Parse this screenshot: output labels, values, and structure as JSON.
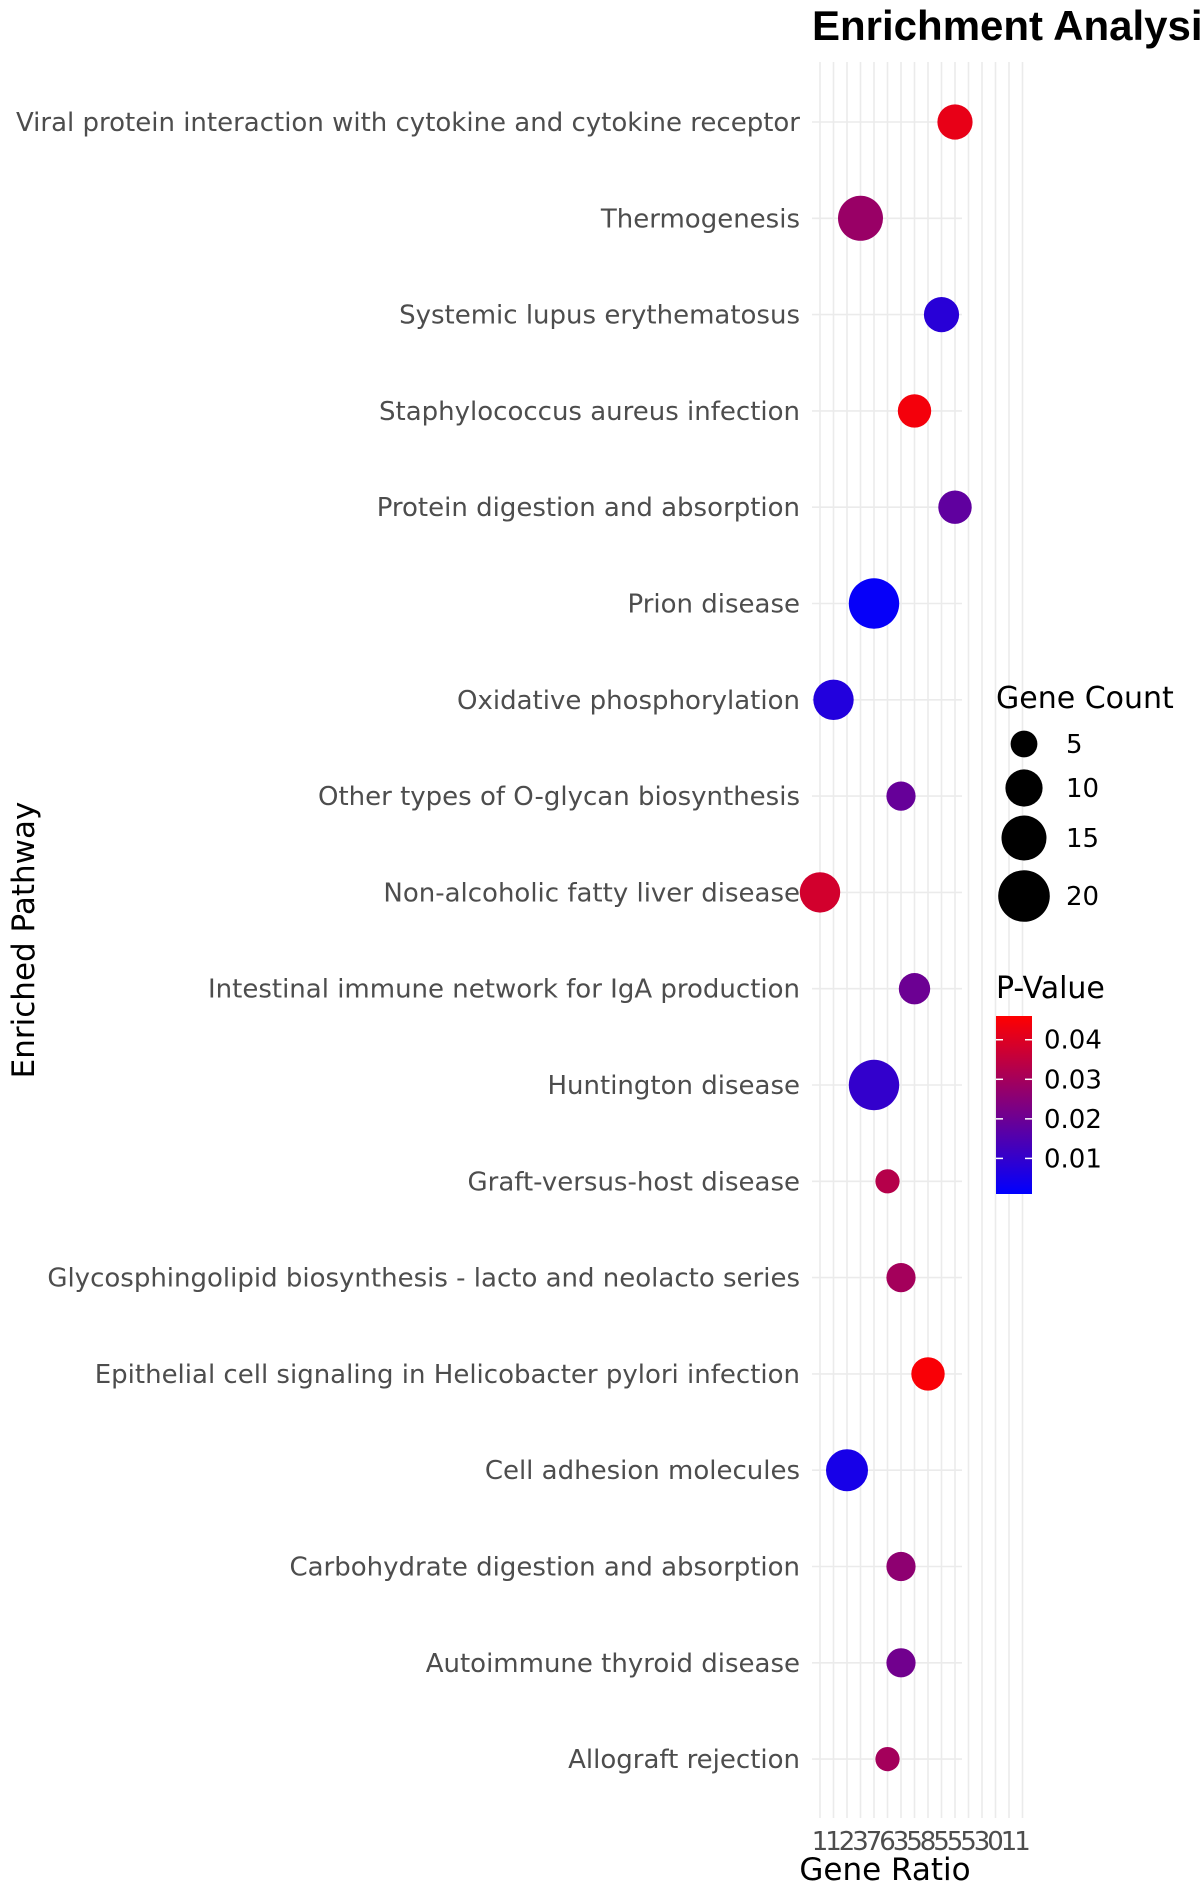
{
  "chart_data": {
    "type": "scatter",
    "title": "Enrichment Analysis",
    "xlabel": "Gene Ratio",
    "ylabel": "Enriched Pathway",
    "x_ticks": [
      "1",
      "1",
      "2",
      "3",
      "7",
      "6",
      "3",
      "5",
      "8",
      "5",
      "5",
      "5",
      "3",
      "0",
      "1",
      "1"
    ],
    "grid": true,
    "legend_position": "right",
    "categories": [
      "Viral protein interaction with cytokine and cytokine receptor",
      "Thermogenesis",
      "Systemic lupus erythematosus",
      "Staphylococcus aureus infection",
      "Protein digestion and absorption",
      "Prion disease",
      "Oxidative phosphorylation",
      "Other types of O-glycan biosynthesis",
      "Non-alcoholic fatty liver disease",
      "Intestinal immune network for IgA production",
      "Huntington disease",
      "Graft-versus-host disease",
      "Glycosphingolipid biosynthesis - lacto and neolacto series",
      "Epithelial cell signaling in Helicobacter pylori infection",
      "Cell adhesion molecules",
      "Carbohydrate digestion and absorption",
      "Autoimmune thyroid disease",
      "Allograft rejection"
    ],
    "points": [
      {
        "pathway": "Viral protein interaction with cytokine and cytokine receptor",
        "x_index": 10,
        "count": 9,
        "pvalue": 0.042
      },
      {
        "pathway": "Thermogenesis",
        "x_index": 3,
        "count": 15,
        "pvalue": 0.028
      },
      {
        "pathway": "Systemic lupus erythematosus",
        "x_index": 9,
        "count": 9,
        "pvalue": 0.008
      },
      {
        "pathway": "Staphylococcus aureus infection",
        "x_index": 7,
        "count": 8,
        "pvalue": 0.044
      },
      {
        "pathway": "Protein digestion and absorption",
        "x_index": 10,
        "count": 8,
        "pvalue": 0.018
      },
      {
        "pathway": "Prion disease",
        "x_index": 4,
        "count": 19,
        "pvalue": 0.002
      },
      {
        "pathway": "Oxidative phosphorylation",
        "x_index": 1,
        "count": 12,
        "pvalue": 0.007
      },
      {
        "pathway": "Other types of O-glycan biosynthesis",
        "x_index": 6,
        "count": 6,
        "pvalue": 0.019
      },
      {
        "pathway": "Non-alcoholic fatty liver disease",
        "x_index": 0,
        "count": 12,
        "pvalue": 0.038
      },
      {
        "pathway": "Intestinal immune network for IgA production",
        "x_index": 7,
        "count": 7,
        "pvalue": 0.02
      },
      {
        "pathway": "Huntington disease",
        "x_index": 4,
        "count": 19,
        "pvalue": 0.01
      },
      {
        "pathway": "Graft-versus-host disease",
        "x_index": 5,
        "count": 4,
        "pvalue": 0.033
      },
      {
        "pathway": "Glycosphingolipid biosynthesis - lacto and neolacto series",
        "x_index": 6,
        "count": 6,
        "pvalue": 0.03
      },
      {
        "pathway": "Epithelial cell signaling in Helicobacter pylori infection",
        "x_index": 8,
        "count": 8,
        "pvalue": 0.045
      },
      {
        "pathway": "Cell adhesion molecules",
        "x_index": 2,
        "count": 13,
        "pvalue": 0.005
      },
      {
        "pathway": "Carbohydrate digestion and absorption",
        "x_index": 6,
        "count": 6,
        "pvalue": 0.026
      },
      {
        "pathway": "Autoimmune thyroid disease",
        "x_index": 6,
        "count": 6,
        "pvalue": 0.021
      },
      {
        "pathway": "Allograft rejection",
        "x_index": 5,
        "count": 4,
        "pvalue": 0.03
      }
    ],
    "size_legend": {
      "title": "Gene Count",
      "values": [
        5,
        10,
        15,
        20
      ],
      "labels": [
        "5",
        "10",
        "15",
        "20"
      ]
    },
    "color_legend": {
      "title": "P-Value",
      "low_color": "#0000ff",
      "high_color": "#ff0000",
      "range": [
        0.001,
        0.046
      ],
      "ticks": [
        0.01,
        0.02,
        0.03,
        0.04
      ],
      "labels": [
        "0.01",
        "0.02",
        "0.03",
        "0.04"
      ]
    }
  }
}
